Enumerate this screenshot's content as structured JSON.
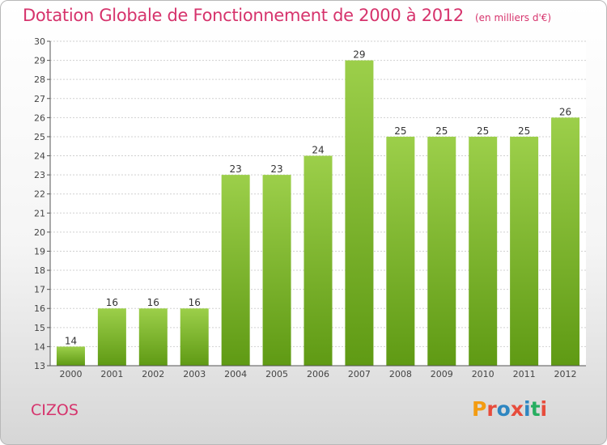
{
  "header": {
    "title": "Dotation Globale de Fonctionnement de 2000 à 2012",
    "subtitle": "(en milliers d'€)"
  },
  "footer": {
    "commune": "CIZOS",
    "logo_text": "Proxiti",
    "logo_colors": [
      "#f39c12",
      "#e74c3c",
      "#2e86c1",
      "#e74c3c",
      "#2e86c1",
      "#27ae60",
      "#e74c3c"
    ]
  },
  "chart_data": {
    "type": "bar",
    "title": "Dotation Globale de Fonctionnement de 2000 à 2012",
    "subtitle": "(en milliers d'€)",
    "categories": [
      "2000",
      "2001",
      "2002",
      "2003",
      "2004",
      "2005",
      "2006",
      "2007",
      "2008",
      "2009",
      "2010",
      "2011",
      "2012"
    ],
    "values": [
      14,
      16,
      16,
      16,
      23,
      23,
      24,
      29,
      25,
      25,
      25,
      25,
      26
    ],
    "ylim": [
      13,
      30
    ],
    "yticks": [
      13,
      14,
      15,
      16,
      17,
      18,
      19,
      20,
      21,
      22,
      23,
      24,
      25,
      26,
      27,
      28,
      29,
      30
    ],
    "grid": true,
    "bar_color_top": "#9ccf4a",
    "bar_color_bottom": "#5f9a14"
  }
}
